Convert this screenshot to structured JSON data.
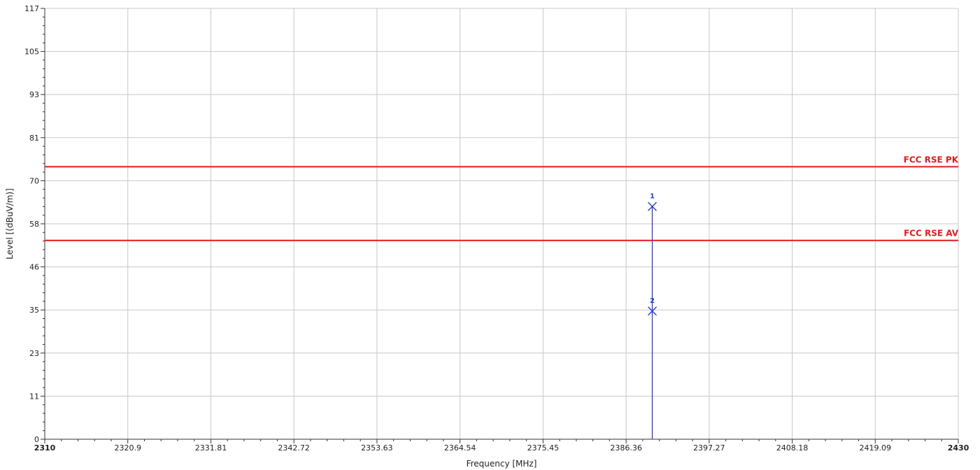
{
  "chart_data": {
    "type": "line",
    "xlabel": "Frequency [MHz]",
    "ylabel": "Level [(dBuV/m)]",
    "xlim": [
      2310,
      2430
    ],
    "ylim": [
      0,
      117
    ],
    "x_tick_labels": [
      "2310",
      "2320.9",
      "2331.81",
      "2342.72",
      "2353.63",
      "2364.54",
      "2375.45",
      "2386.36",
      "2397.27",
      "2408.18",
      "2419.09",
      "2430"
    ],
    "y_tick_labels": [
      "0",
      "11",
      "23",
      "35",
      "46",
      "58",
      "70",
      "81",
      "93",
      "105",
      "117"
    ],
    "grid": true,
    "limit_lines": [
      {
        "name": "FCC RSE PK",
        "y": 74,
        "color": "#e41a1c"
      },
      {
        "name": "FCC RSE AV",
        "y": 54,
        "color": "#e41a1c"
      }
    ],
    "trace": {
      "color": "#2b3bd6",
      "points": [
        [
          2389.8,
          0
        ],
        [
          2389.8,
          63.2
        ]
      ]
    },
    "markers": [
      {
        "label": "1",
        "x": 2389.8,
        "y": 63.2
      },
      {
        "label": "2",
        "x": 2389.8,
        "y": 34.8
      }
    ]
  }
}
